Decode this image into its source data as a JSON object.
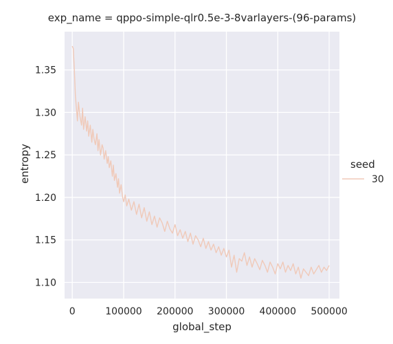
{
  "chart_data": {
    "type": "line",
    "title": "exp_name = qppo-simple-qlr0.5e-3-8varlayers-(96-params)",
    "xlabel": "global_step",
    "ylabel": "entropy",
    "xlim": [
      -15000,
      520000
    ],
    "ylim": [
      1.081,
      1.395
    ],
    "xticks": [
      0,
      100000,
      200000,
      300000,
      400000,
      500000
    ],
    "xtick_labels": [
      "0",
      "100000",
      "200000",
      "300000",
      "400000",
      "500000"
    ],
    "yticks": [
      1.1,
      1.15,
      1.2,
      1.25,
      1.3,
      1.35
    ],
    "ytick_labels": [
      "1.10",
      "1.15",
      "1.20",
      "1.25",
      "1.30",
      "1.35"
    ],
    "grid": true,
    "legend": {
      "title": "seed",
      "placement": "right"
    },
    "series": [
      {
        "name": "30",
        "color": "#f0c9b8",
        "x": [
          0,
          2000,
          4000,
          6000,
          8000,
          10000,
          12000,
          15000,
          18000,
          20000,
          22000,
          25000,
          28000,
          30000,
          32000,
          35000,
          38000,
          40000,
          42000,
          45000,
          48000,
          50000,
          52000,
          55000,
          58000,
          60000,
          62000,
          65000,
          68000,
          70000,
          72000,
          75000,
          78000,
          80000,
          82000,
          85000,
          88000,
          90000,
          92000,
          95000,
          98000,
          100000,
          103000,
          106000,
          110000,
          115000,
          120000,
          125000,
          130000,
          135000,
          140000,
          145000,
          150000,
          155000,
          160000,
          165000,
          170000,
          175000,
          180000,
          185000,
          190000,
          195000,
          200000,
          205000,
          210000,
          215000,
          220000,
          225000,
          230000,
          235000,
          240000,
          245000,
          250000,
          255000,
          260000,
          265000,
          270000,
          275000,
          280000,
          285000,
          290000,
          295000,
          300000,
          305000,
          310000,
          315000,
          320000,
          325000,
          330000,
          335000,
          340000,
          345000,
          350000,
          355000,
          360000,
          365000,
          370000,
          375000,
          380000,
          385000,
          390000,
          395000,
          400000,
          405000,
          410000,
          415000,
          420000,
          425000,
          430000,
          435000,
          440000,
          445000,
          450000,
          455000,
          460000,
          465000,
          470000,
          475000,
          480000,
          485000,
          490000,
          495000,
          500000
        ],
        "values": [
          1.378,
          1.375,
          1.35,
          1.32,
          1.305,
          1.29,
          1.312,
          1.295,
          1.285,
          1.305,
          1.28,
          1.295,
          1.278,
          1.29,
          1.272,
          1.285,
          1.265,
          1.28,
          1.27,
          1.262,
          1.275,
          1.255,
          1.268,
          1.25,
          1.262,
          1.258,
          1.245,
          1.255,
          1.24,
          1.248,
          1.235,
          1.243,
          1.225,
          1.238,
          1.22,
          1.228,
          1.212,
          1.222,
          1.205,
          1.215,
          1.2,
          1.195,
          1.203,
          1.19,
          1.198,
          1.185,
          1.195,
          1.18,
          1.192,
          1.176,
          1.188,
          1.172,
          1.183,
          1.168,
          1.178,
          1.165,
          1.176,
          1.17,
          1.16,
          1.172,
          1.163,
          1.158,
          1.168,
          1.155,
          1.162,
          1.152,
          1.16,
          1.148,
          1.158,
          1.145,
          1.155,
          1.15,
          1.142,
          1.152,
          1.14,
          1.148,
          1.138,
          1.145,
          1.135,
          1.142,
          1.132,
          1.14,
          1.13,
          1.138,
          1.118,
          1.132,
          1.112,
          1.128,
          1.125,
          1.135,
          1.12,
          1.13,
          1.118,
          1.128,
          1.122,
          1.115,
          1.126,
          1.12,
          1.112,
          1.124,
          1.118,
          1.11,
          1.122,
          1.116,
          1.124,
          1.112,
          1.12,
          1.114,
          1.122,
          1.11,
          1.118,
          1.105,
          1.116,
          1.112,
          1.108,
          1.118,
          1.11,
          1.115,
          1.12,
          1.112,
          1.118,
          1.114,
          1.12
        ]
      }
    ]
  }
}
